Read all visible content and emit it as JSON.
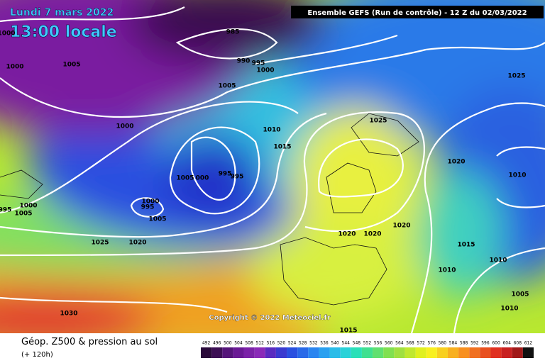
{
  "header": {
    "date": "Lundi 7 mars 2022",
    "time": "13:00 locale",
    "model": "Ensemble GEFS  (Run de contrôle)  -  12 Z du 02/03/2022"
  },
  "copyright": "Copyright © 2022 Meteociel.fr",
  "footer": {
    "title": "Géop. Z500 & pression au sol",
    "lead": "(+ 120h)"
  },
  "isobar_labels": [
    985,
    990,
    995,
    1000,
    1000,
    1000,
    1005,
    1005,
    1000,
    1010,
    1015,
    1025,
    1025,
    1020,
    1010,
    1005,
    "000",
    995,
    995,
    1000,
    995,
    1005,
    995,
    1000,
    1005,
    1025,
    1020,
    1020,
    1020,
    1020,
    1015,
    1010,
    1010,
    1005,
    1010,
    1030,
    1015
  ],
  "scale": [
    492,
    496,
    500,
    504,
    508,
    512,
    516,
    520,
    524,
    528,
    532,
    536,
    540,
    544,
    548,
    552,
    556,
    560,
    564,
    568,
    572,
    576,
    580,
    584,
    588,
    592,
    596,
    600,
    604,
    608,
    612
  ]
}
